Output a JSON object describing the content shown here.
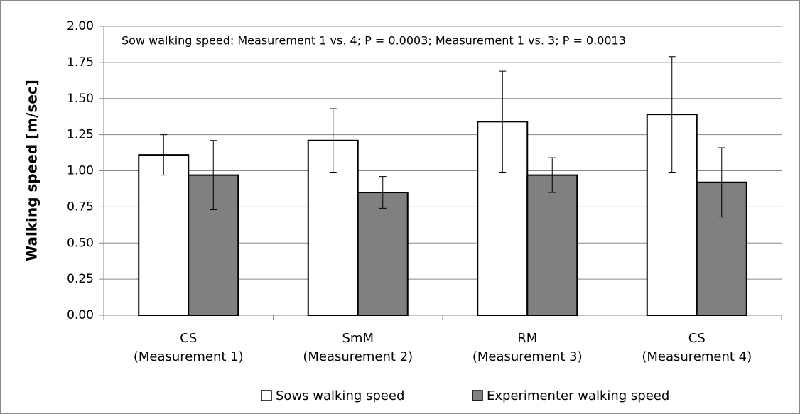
{
  "chart_data": {
    "type": "bar",
    "annotation": "Sow walking speed: Measurement 1 vs. 4; P = 0.0003; Measurement 1 vs. 3; P = 0.0013",
    "y_label": "Walking speed [m/sec]",
    "categories": [
      "CS\n(Measurement 1)",
      "SmM\n(Measurement 2)",
      "RM\n(Measurement 3)",
      "CS\n(Measurement 4)"
    ],
    "series": [
      {
        "name": "Sows walking speed",
        "color": "#ffffff",
        "values": [
          1.11,
          1.21,
          1.34,
          1.39
        ],
        "errors": [
          0.14,
          0.22,
          0.35,
          0.4
        ]
      },
      {
        "name": "Experimenter walking speed",
        "color": "#808080",
        "values": [
          0.97,
          0.85,
          0.97,
          0.92
        ],
        "errors": [
          0.24,
          0.11,
          0.12,
          0.24
        ]
      }
    ],
    "ylim": [
      0,
      2
    ],
    "yticks": [
      {
        "value": 0,
        "label": "0.00"
      },
      {
        "value": 0.25,
        "label": "0.25"
      },
      {
        "value": 0.5,
        "label": "0.50"
      },
      {
        "value": 0.75,
        "label": "0.75"
      },
      {
        "value": 1,
        "label": "1.00"
      },
      {
        "value": 1.25,
        "label": "1.25"
      },
      {
        "value": 1.5,
        "label": "1.50"
      },
      {
        "value": 1.75,
        "label": "1.75"
      },
      {
        "value": 2,
        "label": "2.00"
      }
    ],
    "grid": true,
    "legend": "bottom"
  }
}
